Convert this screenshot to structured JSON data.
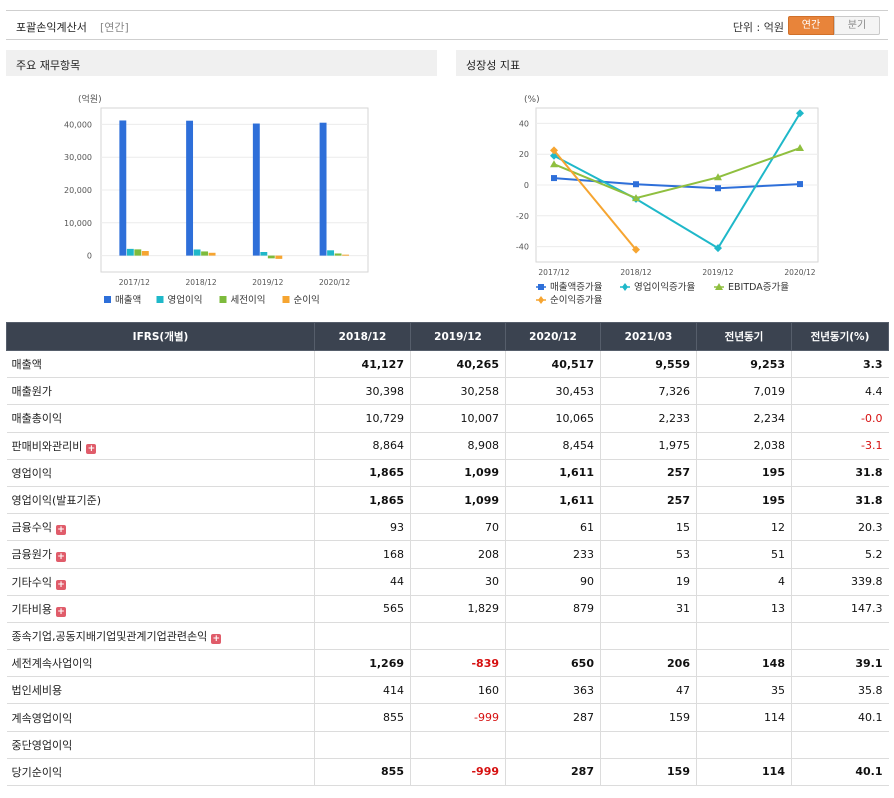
{
  "header": {
    "title": "포괄손익계산서",
    "subtitle": "[연간]",
    "unit_label": "단위 : 억원",
    "btn_annual": "연간",
    "btn_quarter": "분기"
  },
  "left_panel": {
    "title": "주요 재무항목"
  },
  "right_panel": {
    "title": "성장성 지표"
  },
  "chart_data": [
    {
      "type": "bar",
      "ylabel": "(억원)",
      "categories": [
        "2017/12",
        "2018/12",
        "2019/12",
        "2020/12"
      ],
      "ylim": [
        -5000,
        45000
      ],
      "yticks": [
        0,
        10000,
        20000,
        30000,
        40000
      ],
      "ytick_labels": [
        "0",
        "10,000",
        "20,000",
        "30,000",
        "40,000"
      ],
      "series": [
        {
          "name": "매출액",
          "color": "#2e6fd9",
          "values": [
            41200,
            41127,
            40265,
            40517
          ]
        },
        {
          "name": "영업이익",
          "color": "#1fb8c9",
          "values": [
            2050,
            1865,
            1099,
            1611
          ]
        },
        {
          "name": "세전이익",
          "color": "#7dbb3c",
          "values": [
            1900,
            1269,
            -839,
            650
          ]
        },
        {
          "name": "순이익",
          "color": "#f6a531",
          "values": [
            1400,
            855,
            -999,
            287
          ]
        }
      ],
      "legend": "bottom"
    },
    {
      "type": "line",
      "ylabel": "(%)",
      "categories": [
        "2017/12",
        "2018/12",
        "2019/12",
        "2020/12"
      ],
      "ylim": [
        -50,
        50
      ],
      "yticks": [
        -40,
        -20,
        0,
        20,
        40
      ],
      "ytick_labels": [
        "-40",
        "-20",
        "0",
        "20",
        "40"
      ],
      "series": [
        {
          "name": "매출액증가율",
          "color": "#2e6fd9",
          "marker": "square",
          "values": [
            4.5,
            0.5,
            -2.1,
            0.6
          ]
        },
        {
          "name": "영업이익증가율",
          "color": "#1fb8c9",
          "marker": "diamond",
          "values": [
            19,
            -9,
            -41,
            46.6
          ]
        },
        {
          "name": "EBITDA증가율",
          "color": "#8fbf3f",
          "marker": "triangle",
          "values": [
            13.5,
            -8.5,
            5,
            24
          ]
        },
        {
          "name": "순이익증가율",
          "color": "#f6a531",
          "marker": "diamond",
          "values": [
            22.5,
            -42,
            null,
            null
          ]
        }
      ],
      "legend": "bottom"
    }
  ],
  "table": {
    "header": [
      "IFRS(개별)",
      "2018/12",
      "2019/12",
      "2020/12",
      "2021/03",
      "전년동기",
      "전년동기(%)"
    ],
    "rows": [
      {
        "label": "매출액",
        "bold": true,
        "plus": false,
        "values": [
          "41,127",
          "40,265",
          "40,517",
          "9,559",
          "9,253",
          "3.3"
        ]
      },
      {
        "label": "매출원가",
        "bold": false,
        "plus": false,
        "values": [
          "30,398",
          "30,258",
          "30,453",
          "7,326",
          "7,019",
          "4.4"
        ]
      },
      {
        "label": "매출총이익",
        "bold": false,
        "plus": false,
        "values": [
          "10,729",
          "10,007",
          "10,065",
          "2,233",
          "2,234",
          "-0.0"
        ]
      },
      {
        "label": "판매비와관리비",
        "bold": false,
        "plus": true,
        "values": [
          "8,864",
          "8,908",
          "8,454",
          "1,975",
          "2,038",
          "-3.1"
        ]
      },
      {
        "label": "영업이익",
        "bold": true,
        "plus": false,
        "values": [
          "1,865",
          "1,099",
          "1,611",
          "257",
          "195",
          "31.8"
        ]
      },
      {
        "label": "영업이익(발표기준)",
        "bold": true,
        "plus": false,
        "values": [
          "1,865",
          "1,099",
          "1,611",
          "257",
          "195",
          "31.8"
        ]
      },
      {
        "label": "금융수익",
        "bold": false,
        "plus": true,
        "values": [
          "93",
          "70",
          "61",
          "15",
          "12",
          "20.3"
        ]
      },
      {
        "label": "금융원가",
        "bold": false,
        "plus": true,
        "values": [
          "168",
          "208",
          "233",
          "53",
          "51",
          "5.2"
        ]
      },
      {
        "label": "기타수익",
        "bold": false,
        "plus": true,
        "values": [
          "44",
          "30",
          "90",
          "19",
          "4",
          "339.8"
        ]
      },
      {
        "label": "기타비용",
        "bold": false,
        "plus": true,
        "values": [
          "565",
          "1,829",
          "879",
          "31",
          "13",
          "147.3"
        ]
      },
      {
        "label": "종속기업,공동지배기업및관계기업관련손익",
        "bold": false,
        "plus": true,
        "values": [
          "",
          "",
          "",
          "",
          "",
          ""
        ]
      },
      {
        "label": "세전계속사업이익",
        "bold": true,
        "plus": false,
        "values": [
          "1,269",
          "-839",
          "650",
          "206",
          "148",
          "39.1"
        ]
      },
      {
        "label": "법인세비용",
        "bold": false,
        "plus": false,
        "values": [
          "414",
          "160",
          "363",
          "47",
          "35",
          "35.8"
        ]
      },
      {
        "label": "계속영업이익",
        "bold": false,
        "plus": false,
        "values": [
          "855",
          "-999",
          "287",
          "159",
          "114",
          "40.1"
        ]
      },
      {
        "label": "중단영업이익",
        "bold": false,
        "plus": false,
        "values": [
          "",
          "",
          "",
          "",
          "",
          ""
        ]
      },
      {
        "label": "당기순이익",
        "bold": true,
        "plus": false,
        "values": [
          "855",
          "-999",
          "287",
          "159",
          "114",
          "40.1"
        ]
      }
    ]
  }
}
